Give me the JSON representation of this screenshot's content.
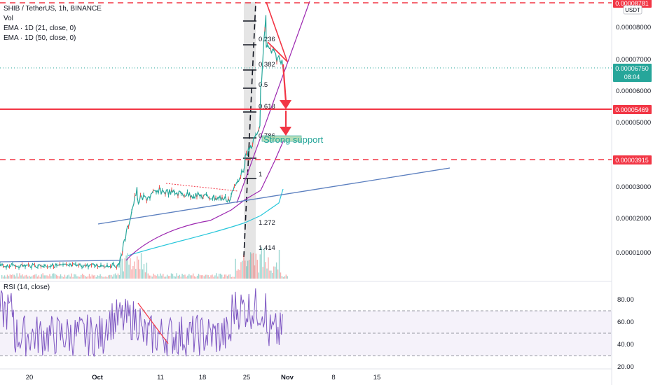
{
  "legend": {
    "symbol": "SHIB / TetherUS, 1h, BINANCE",
    "vol": "Vol",
    "ema1": "EMA · 1D (21, close, 0)",
    "ema2": "EMA · 1D (50, close, 0)"
  },
  "rsi_legend": "RSI (14, close)",
  "currency": "USDT",
  "annotation": "Strong support",
  "colors": {
    "up": "#26a69a",
    "down": "#ef5350",
    "red_line": "#f23645",
    "ema21": "#26c6da",
    "ema50": "#9c27b0",
    "trend": "#5b7fbf",
    "rsi": "#7e57c2",
    "fib_fill": "#cfcfcf"
  },
  "chart_data": [
    {
      "type": "line",
      "title": "SHIB / TetherUS, 1h, BINANCE",
      "x_ticks": [
        "20",
        "Oct",
        "11",
        "18",
        "25",
        "Nov",
        "8",
        "15"
      ],
      "y_ticks": [
        "0.00008000",
        "0.00007000",
        "0.00006000",
        "0.00005000",
        "0.00003000",
        "0.00002000",
        "0.00001000"
      ],
      "ylim": [
        3e-07,
        8.7e-06
      ],
      "price_series_approx": [
        [
          "20",
          7.2e-06
        ],
        [
          "Oct",
          7.5e-06
        ],
        [
          "Oct+4",
          8.6e-06
        ],
        [
          "Oct+6",
          3e-05
        ],
        [
          "11",
          3e-05
        ],
        [
          "18",
          2.7e-05
        ],
        [
          "25",
          4.5e-05
        ],
        [
          "27",
          8.8e-05
        ],
        [
          "28",
          7e-05
        ],
        [
          "29",
          6.75e-05
        ]
      ],
      "horizontal_levels": [
        {
          "label": "0.00008781",
          "value": 8.781e-05,
          "style": "dashed"
        },
        {
          "label": "0.00006750",
          "value": 6.75e-05,
          "style": "dotted",
          "sub": "08:04"
        },
        {
          "label": "0.00005469",
          "value": 5.469e-05,
          "style": "solid"
        },
        {
          "label": "0.00003915",
          "value": 3.915e-05,
          "style": "dashed"
        }
      ],
      "fib_levels": [
        "0.236",
        "0.382",
        "0.5",
        "0.618",
        "0.786",
        "1",
        "1.272",
        "1.414"
      ],
      "series": [
        {
          "name": "EMA · 1D (21, close, 0)"
        },
        {
          "name": "EMA · 1D (50, close, 0)"
        }
      ]
    },
    {
      "type": "line",
      "title": "RSI (14, close)",
      "y_ticks": [
        "80.00",
        "60.00",
        "40.00",
        "20.00"
      ],
      "ylim": [
        20,
        100
      ],
      "band": [
        30,
        70
      ]
    }
  ]
}
